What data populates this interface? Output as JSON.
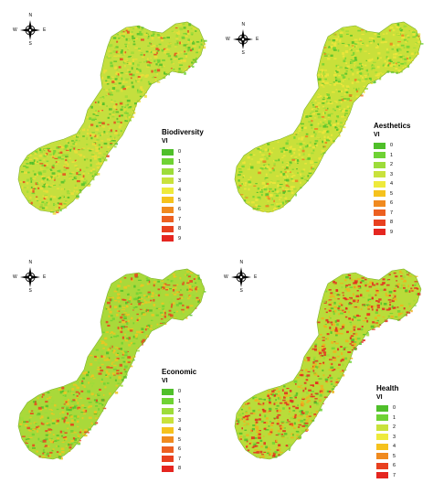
{
  "panels": [
    {
      "id": "biodiversity",
      "legend_title": "Biodiversity",
      "legend_subtitle": "VI",
      "classes": [
        "0",
        "1",
        "2",
        "3",
        "4",
        "5",
        "6",
        "7",
        "8",
        "9"
      ]
    },
    {
      "id": "aesthetics",
      "legend_title": "Aesthetics",
      "legend_subtitle": "VI",
      "classes": [
        "0",
        "1",
        "2",
        "3",
        "4",
        "5",
        "6",
        "7",
        "8",
        "9"
      ]
    },
    {
      "id": "economic",
      "legend_title": "Economic",
      "legend_subtitle": "VI",
      "classes": [
        "0",
        "1",
        "2",
        "3",
        "4",
        "5",
        "6",
        "7",
        "8"
      ]
    },
    {
      "id": "health",
      "legend_title": "Health",
      "legend_subtitle": "VI",
      "classes": [
        "0",
        "1",
        "2",
        "3",
        "4",
        "5",
        "6",
        "7"
      ]
    }
  ],
  "compass": {
    "n": "N",
    "s": "S",
    "e": "E",
    "w": "W"
  },
  "palette": [
    "#4fbf2a",
    "#6fd234",
    "#9ddc3a",
    "#c9e23c",
    "#eeea3c",
    "#f5c21d",
    "#f08a1f",
    "#ec6021",
    "#e8401f",
    "#e52620"
  ],
  "map_mix": {
    "biodiversity": {
      "base": "#c5df3e",
      "mid": "#eddd3a",
      "hot": "#e8461f",
      "hot_level": 0.12,
      "mid_level": 0.35
    },
    "aesthetics": {
      "base": "#c9e03a",
      "mid": "#eee53c",
      "hot": "#ee7e1f",
      "hot_level": 0.08,
      "mid_level": 0.45
    },
    "economic": {
      "base": "#a9d93a",
      "mid": "#f0c422",
      "hot": "#e9431f",
      "hot_level": 0.22,
      "mid_level": 0.4
    },
    "health": {
      "base": "#b9dc3a",
      "mid": "#f0b21f",
      "hot": "#e52a1f",
      "hot_level": 0.38,
      "mid_level": 0.35
    }
  }
}
